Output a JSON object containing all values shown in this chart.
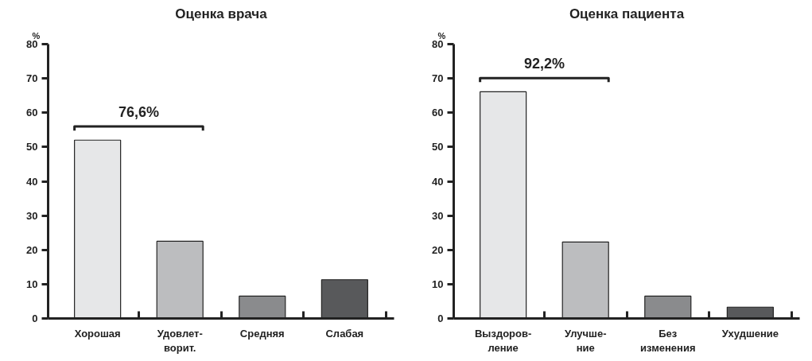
{
  "chart_data": [
    {
      "type": "bar",
      "title": "Оценка врача",
      "ylabel": "%",
      "categories": [
        "Хорошая",
        "Удовлет-\nворит.",
        "Средняя",
        "Слабая"
      ],
      "values": [
        52,
        22.5,
        6.5,
        11.3
      ],
      "colors": [
        "#e6e7e8",
        "#bcbdbf",
        "#8a8b8d",
        "#58595b"
      ],
      "ylim": [
        0,
        80
      ],
      "yticks": [
        0,
        10,
        20,
        30,
        40,
        50,
        60,
        70,
        80
      ],
      "annotations": [
        "76,6%"
      ],
      "grid": false
    },
    {
      "type": "bar",
      "title": "Оценка пациента",
      "ylabel": "%",
      "categories": [
        "Выздоров-\nление",
        "Улучше-\nние",
        "Без\nизменения",
        "Ухудшение"
      ],
      "values": [
        66.1,
        22.3,
        6.5,
        3.3
      ],
      "colors": [
        "#e6e7e8",
        "#bcbdbf",
        "#8a8b8d",
        "#58595b"
      ],
      "ylim": [
        0,
        80
      ],
      "yticks": [
        0,
        10,
        20,
        30,
        40,
        50,
        60,
        70,
        80
      ],
      "annotations": [
        "92,2%"
      ],
      "grid": false
    }
  ]
}
